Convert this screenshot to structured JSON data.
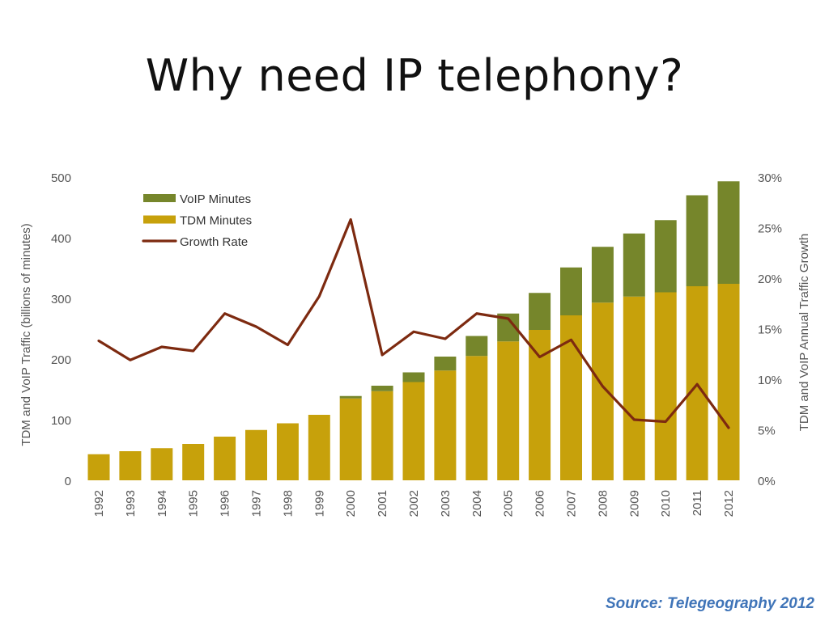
{
  "slide": {
    "title": "Why need IP telephony?",
    "source": "Source: Telegeography 2012"
  },
  "colors": {
    "voip": "#76862b",
    "tdm": "#c7a10b",
    "growth": "#7d2a10",
    "axis_text": "#555555"
  },
  "chart_data": {
    "type": "bar",
    "stacked": true,
    "categories": [
      "1992",
      "1993",
      "1994",
      "1995",
      "1996",
      "1997",
      "1998",
      "1999",
      "2000",
      "2001",
      "2002",
      "2003",
      "2004",
      "2005",
      "2006",
      "2007",
      "2008",
      "2009",
      "2010",
      "2011",
      "2012"
    ],
    "series": [
      {
        "name": "TDM Minutes",
        "axis": "left",
        "color": "#c7a10b",
        "values": [
          43,
          48,
          53,
          60,
          72,
          83,
          94,
          108,
          135,
          147,
          162,
          181,
          205,
          229,
          248,
          272,
          293,
          303,
          310,
          320,
          324
        ]
      },
      {
        "name": "VoIP Minutes",
        "axis": "left",
        "color": "#76862b",
        "values": [
          0,
          0,
          0,
          0,
          0,
          0,
          0,
          0,
          4,
          9,
          16,
          23,
          33,
          46,
          61,
          79,
          92,
          104,
          119,
          150,
          169
        ]
      },
      {
        "name": "Growth Rate",
        "axis": "right",
        "kind": "line",
        "color": "#7d2a10",
        "values": [
          13.8,
          11.9,
          13.2,
          12.8,
          16.5,
          15.2,
          13.4,
          18.2,
          25.8,
          12.4,
          14.7,
          14.0,
          16.5,
          16.0,
          12.2,
          13.9,
          9.3,
          6.0,
          5.8,
          9.5,
          5.2
        ]
      }
    ],
    "legend_order": [
      "VoIP Minutes",
      "TDM Minutes",
      "Growth Rate"
    ],
    "legend_position": "top-left",
    "ylabel": "TDM and VoIP Traffic (billions of minutes)",
    "ylabel_right": "TDM and VoIP Annual Traffic Growth",
    "ylim": [
      0,
      500
    ],
    "yticks": [
      "0",
      "100",
      "200",
      "300",
      "400",
      "500"
    ],
    "ylim_right": [
      0,
      30
    ],
    "yticks_right": [
      "0%",
      "5%",
      "10%",
      "15%",
      "20%",
      "25%",
      "30%"
    ],
    "grid": false
  }
}
